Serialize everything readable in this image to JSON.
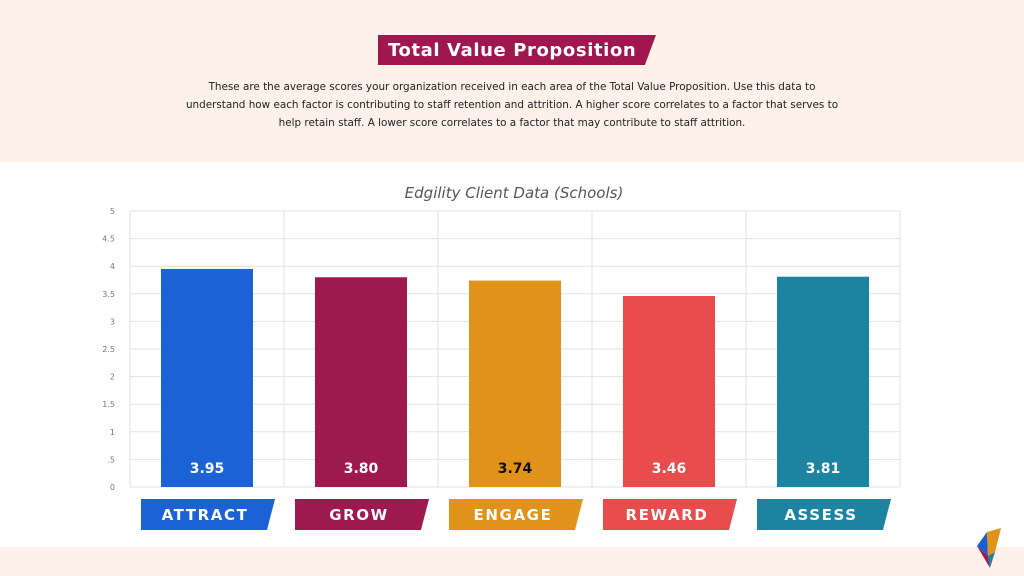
{
  "header": {
    "title": "Total Value Proposition",
    "description": "These are the average scores your organization received in each area of the Total Value Proposition. Use this data to understand how each factor is contributing to staff retention and attrition. A higher score correlates to a factor that serves to help retain staff. A lower score correlates to a factor that may contribute to staff attrition."
  },
  "chart_data": {
    "type": "bar",
    "title": "Edgility Client Data (Schools)",
    "categories": [
      "ATTRACT",
      "GROW",
      "ENGAGE",
      "REWARD",
      "ASSESS"
    ],
    "values": [
      3.95,
      3.8,
      3.74,
      3.46,
      3.81
    ],
    "value_labels": [
      "3.95",
      "3.80",
      "3.74",
      "3.46",
      "3.81"
    ],
    "colors": [
      "#1a62d6",
      "#9e1a4e",
      "#e0921a",
      "#e84c4c",
      "#1c84a0"
    ],
    "value_label_colors": [
      "#ffffff",
      "#ffffff",
      "#111111",
      "#ffffff",
      "#ffffff"
    ],
    "ylim": [
      0,
      5
    ],
    "yticks": [
      0,
      0.5,
      1,
      1.5,
      2,
      2.5,
      3,
      3.5,
      4,
      4.5,
      5
    ],
    "ytick_labels": [
      "0",
      ".5",
      "1",
      "1.5",
      "2",
      "2.5",
      "3",
      "3.5",
      "4",
      "4.5",
      "5"
    ],
    "xlabel": "",
    "ylabel": "",
    "grid": true
  }
}
